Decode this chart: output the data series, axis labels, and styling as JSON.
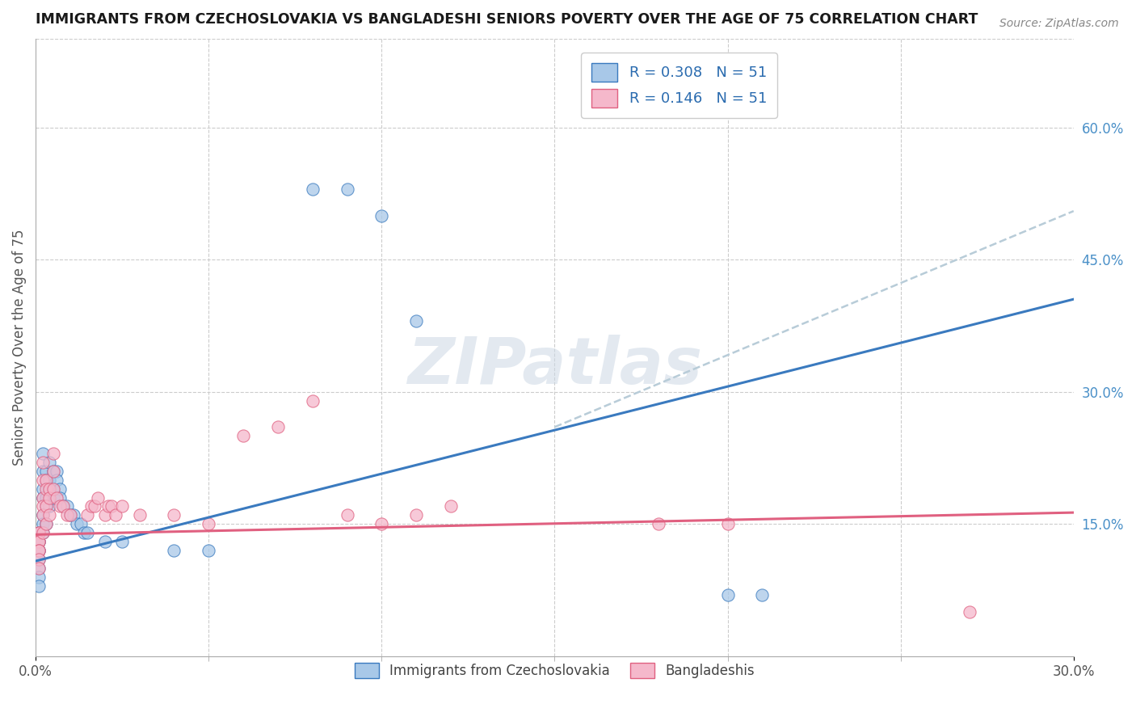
{
  "title": "IMMIGRANTS FROM CZECHOSLOVAKIA VS BANGLADESHI SENIORS POVERTY OVER THE AGE OF 75 CORRELATION CHART",
  "source": "Source: ZipAtlas.com",
  "ylabel": "Seniors Poverty Over the Age of 75",
  "legend1_label": "R = 0.308   N = 51",
  "legend2_label": "R = 0.146   N = 51",
  "color_blue": "#a8c8e8",
  "color_blue_line": "#3a7abf",
  "color_pink": "#f5b8cb",
  "color_pink_line": "#e06080",
  "color_dash": "#b8ccd8",
  "watermark": "ZIPatlas",
  "xlim": [
    0.0,
    0.3
  ],
  "ylim": [
    0.0,
    0.7
  ],
  "xtick_positions": [
    0.0,
    0.3
  ],
  "xtick_labels": [
    "0.0%",
    "30.0%"
  ],
  "ytick_positions_right": [
    0.15,
    0.3,
    0.45,
    0.6
  ],
  "ytick_labels_right": [
    "15.0%",
    "30.0%",
    "45.0%",
    "60.0%"
  ],
  "blue_x": [
    0.001,
    0.001,
    0.001,
    0.001,
    0.001,
    0.001,
    0.001,
    0.001,
    0.001,
    0.001,
    0.002,
    0.002,
    0.002,
    0.002,
    0.002,
    0.002,
    0.002,
    0.003,
    0.003,
    0.003,
    0.003,
    0.003,
    0.004,
    0.004,
    0.004,
    0.004,
    0.005,
    0.005,
    0.005,
    0.006,
    0.006,
    0.007,
    0.007,
    0.008,
    0.009,
    0.01,
    0.011,
    0.012,
    0.013,
    0.014,
    0.015,
    0.02,
    0.025,
    0.04,
    0.05,
    0.08,
    0.09,
    0.1,
    0.11,
    0.2,
    0.21
  ],
  "blue_y": [
    0.14,
    0.14,
    0.13,
    0.13,
    0.12,
    0.12,
    0.11,
    0.1,
    0.09,
    0.08,
    0.23,
    0.21,
    0.19,
    0.18,
    0.16,
    0.15,
    0.14,
    0.21,
    0.2,
    0.18,
    0.17,
    0.15,
    0.22,
    0.2,
    0.19,
    0.17,
    0.21,
    0.19,
    0.18,
    0.21,
    0.2,
    0.19,
    0.18,
    0.17,
    0.17,
    0.16,
    0.16,
    0.15,
    0.15,
    0.14,
    0.14,
    0.13,
    0.13,
    0.12,
    0.12,
    0.53,
    0.53,
    0.5,
    0.38,
    0.07,
    0.07
  ],
  "pink_x": [
    0.001,
    0.001,
    0.001,
    0.001,
    0.001,
    0.001,
    0.001,
    0.001,
    0.002,
    0.002,
    0.002,
    0.002,
    0.002,
    0.002,
    0.003,
    0.003,
    0.003,
    0.003,
    0.004,
    0.004,
    0.004,
    0.005,
    0.005,
    0.005,
    0.006,
    0.007,
    0.008,
    0.009,
    0.01,
    0.015,
    0.016,
    0.017,
    0.018,
    0.02,
    0.021,
    0.022,
    0.023,
    0.025,
    0.03,
    0.04,
    0.05,
    0.06,
    0.07,
    0.08,
    0.09,
    0.1,
    0.11,
    0.12,
    0.18,
    0.2,
    0.27
  ],
  "pink_y": [
    0.14,
    0.14,
    0.13,
    0.13,
    0.12,
    0.12,
    0.11,
    0.1,
    0.22,
    0.2,
    0.18,
    0.17,
    0.16,
    0.14,
    0.2,
    0.19,
    0.17,
    0.15,
    0.19,
    0.18,
    0.16,
    0.23,
    0.21,
    0.19,
    0.18,
    0.17,
    0.17,
    0.16,
    0.16,
    0.16,
    0.17,
    0.17,
    0.18,
    0.16,
    0.17,
    0.17,
    0.16,
    0.17,
    0.16,
    0.16,
    0.15,
    0.25,
    0.26,
    0.29,
    0.16,
    0.15,
    0.16,
    0.17,
    0.15,
    0.15,
    0.05
  ],
  "blue_line_x": [
    0.0,
    0.3
  ],
  "blue_line_y": [
    0.108,
    0.405
  ],
  "pink_line_x": [
    0.0,
    0.3
  ],
  "pink_line_y": [
    0.138,
    0.163
  ],
  "dash_line_x": [
    0.15,
    0.3
  ],
  "dash_line_y": [
    0.26,
    0.505
  ]
}
